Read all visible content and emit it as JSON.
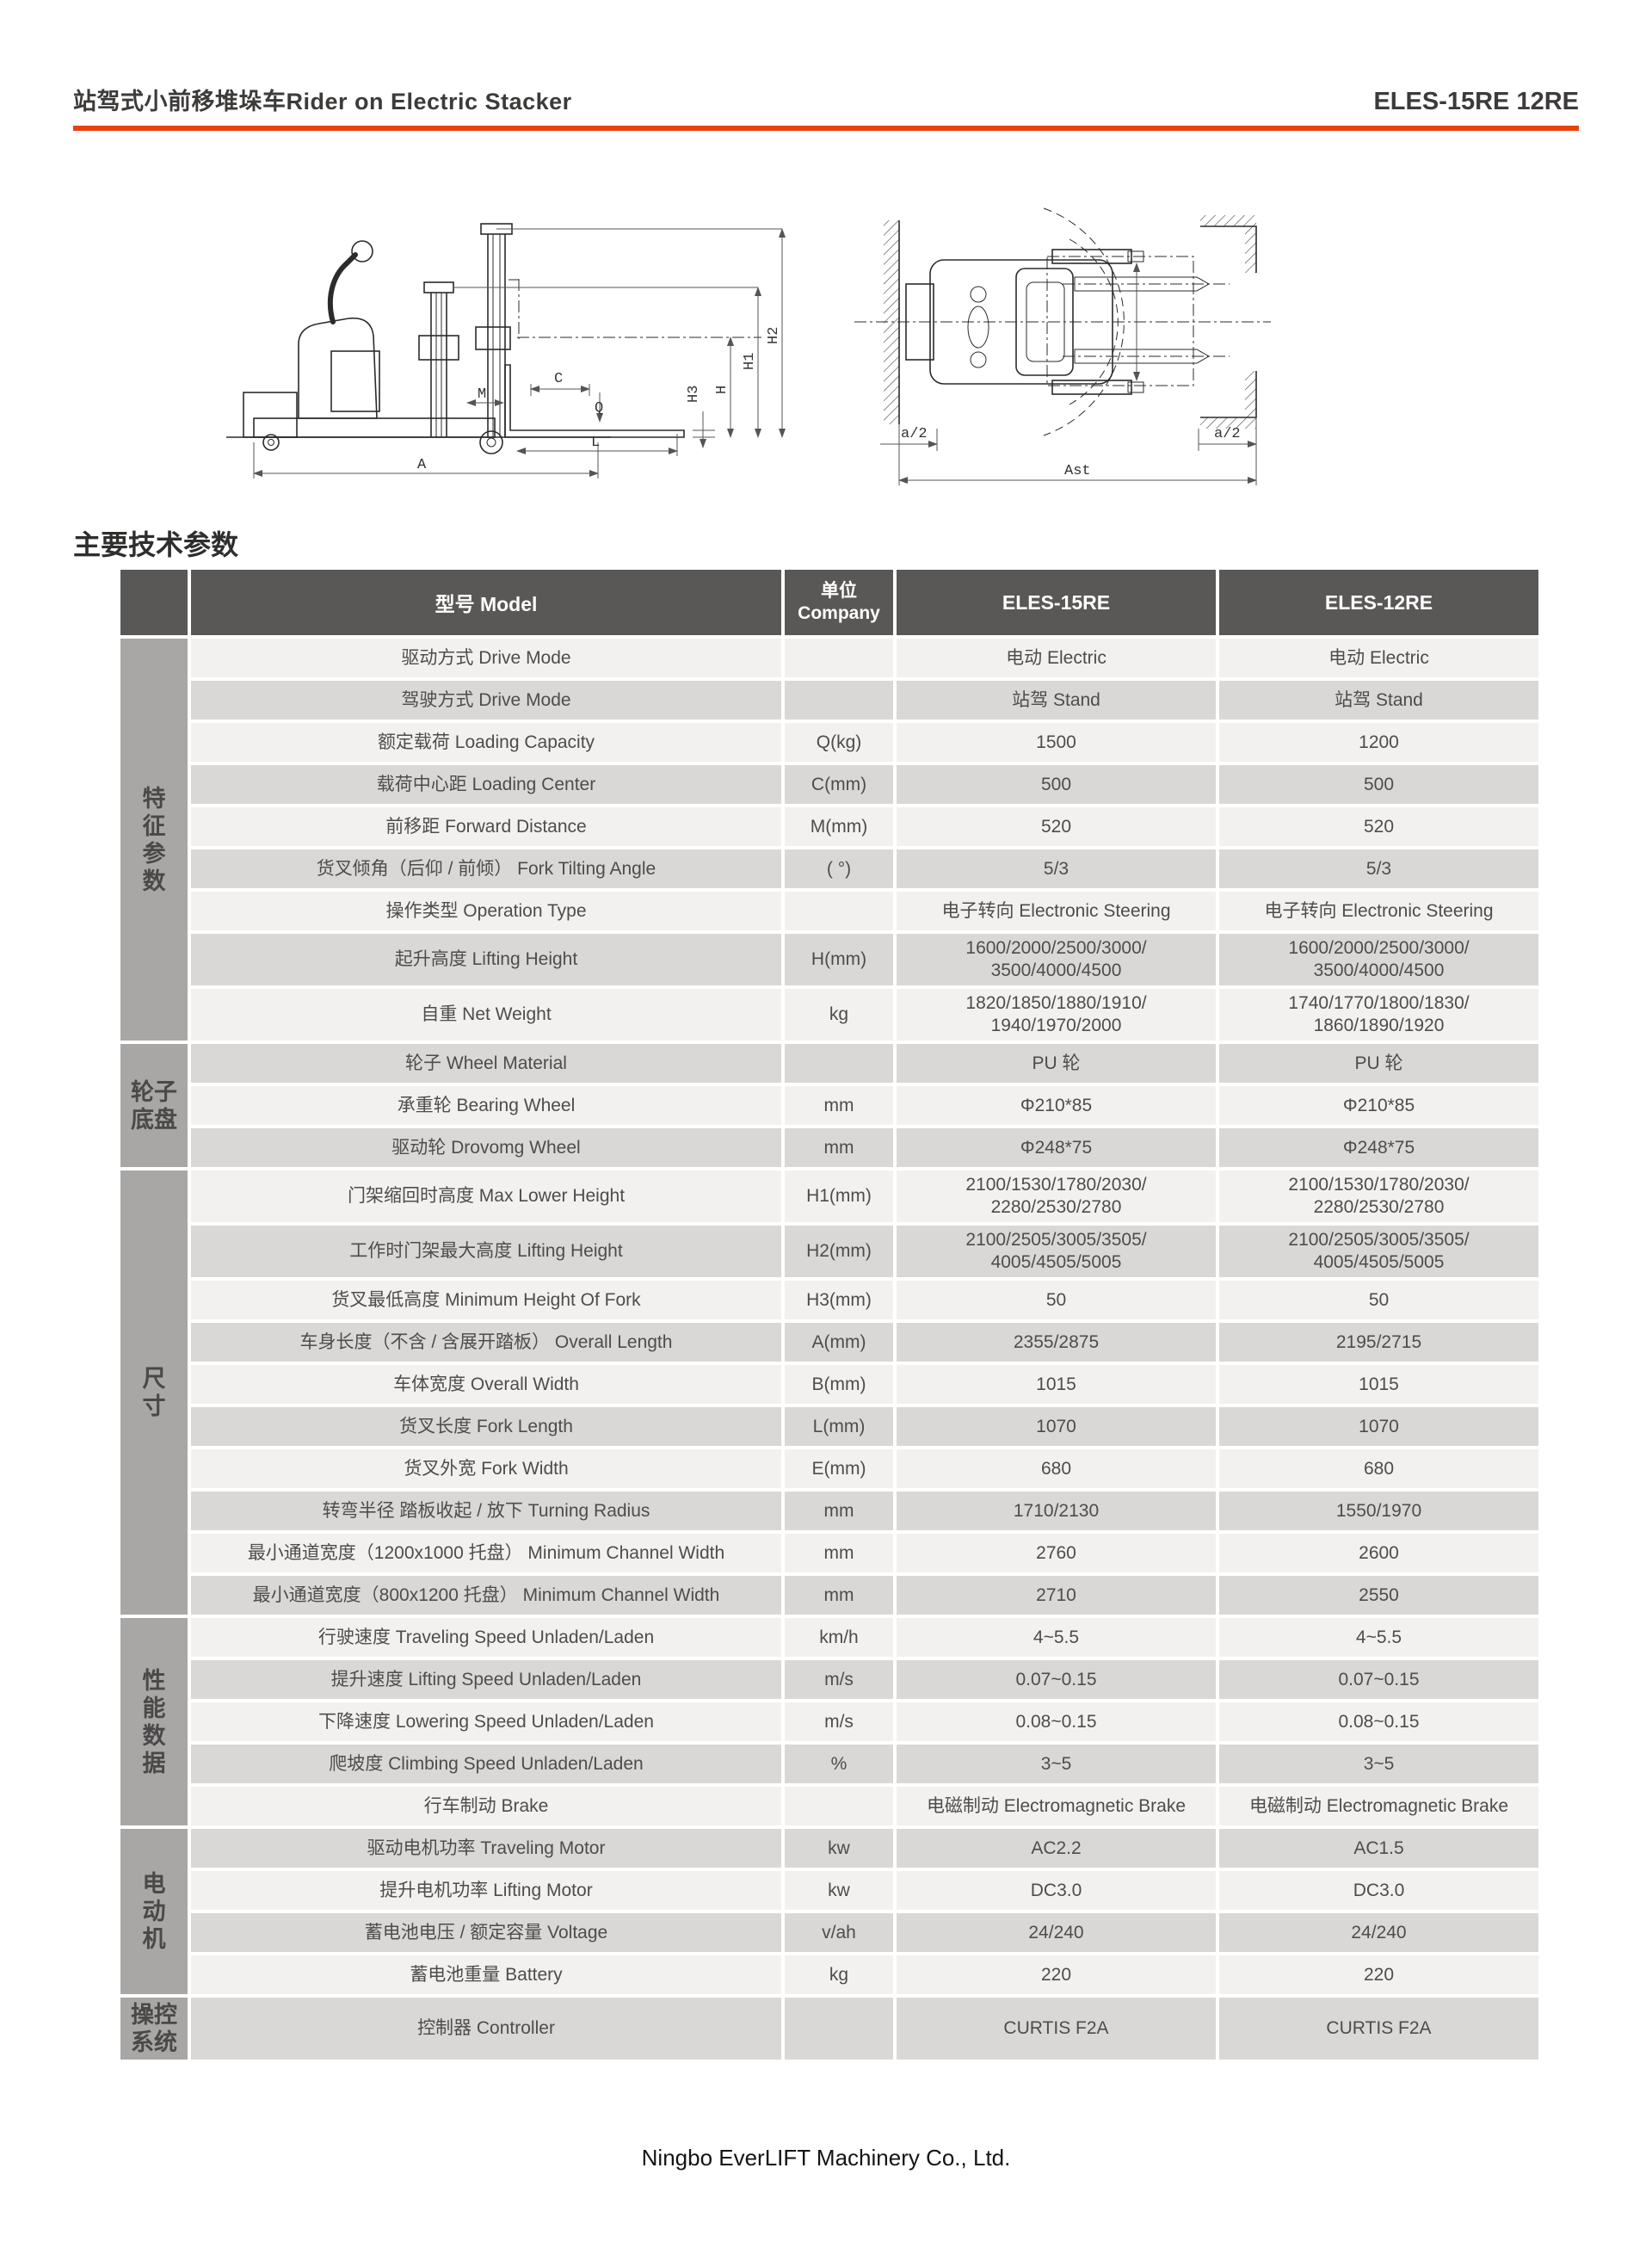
{
  "header": {
    "title": "站驾式小前移堆垛车Rider on Electric Stacker",
    "model_code": "ELES-15RE 12RE",
    "accent_color": "#e8430d"
  },
  "section_title": "主要技术参数",
  "footer": {
    "company": "Ningbo EverLIFT Machinery Co., Ltd."
  },
  "drawings": {
    "side_view": {
      "dimension_labels": [
        "M",
        "C",
        "Q",
        "L",
        "A",
        "H3",
        "H",
        "H1",
        "H2"
      ]
    },
    "top_view": {
      "dimension_labels": [
        "a/2",
        "a/2",
        "Ast"
      ]
    }
  },
  "table": {
    "colors": {
      "header_bg": "#5a5857",
      "group_bg": "#a9a7a5",
      "row_light": "#f2f1ef",
      "row_dark": "#d9d8d6",
      "header_text": "#ffffff",
      "body_text": "#4e4c4c",
      "accent": "#e8430d"
    },
    "header": {
      "model": "型号 Model",
      "unit": "单位\nCompany",
      "col_15re": "ELES-15RE",
      "col_12re": "ELES-12RE"
    },
    "groups": [
      {
        "label": "特\n征\n参\n数",
        "rows": [
          {
            "label": "驱动方式 Drive Mode",
            "unit": "",
            "values": [
              "电动 Electric",
              "电动 Electric"
            ]
          },
          {
            "label": "驾驶方式 Drive Mode",
            "unit": "",
            "values": [
              "站驾 Stand",
              "站驾 Stand"
            ]
          },
          {
            "label": "额定载荷 Loading Capacity",
            "unit": "Q(kg)",
            "values": [
              "1500",
              "1200"
            ]
          },
          {
            "label": "载荷中心距 Loading Center",
            "unit": "C(mm)",
            "values": [
              "500",
              "500"
            ]
          },
          {
            "label": "前移距 Forward Distance",
            "unit": "M(mm)",
            "values": [
              "520",
              "520"
            ]
          },
          {
            "label": "货叉倾角（后仰 / 前倾） Fork Tilting Angle",
            "unit": "( °)",
            "values": [
              "5/3",
              "5/3"
            ]
          },
          {
            "label": "操作类型 Operation Type",
            "unit": "",
            "values": [
              "电子转向 Electronic Steering",
              "电子转向 Electronic Steering"
            ]
          },
          {
            "label": "起升高度 Lifting Height",
            "unit": "H(mm)",
            "values": [
              "1600/2000/2500/3000/\n3500/4000/4500",
              "1600/2000/2500/3000/\n3500/4000/4500"
            ]
          },
          {
            "label": "自重 Net Weight",
            "unit": "kg",
            "values": [
              "1820/1850/1880/1910/\n1940/1970/2000",
              "1740/1770/1800/1830/\n1860/1890/1920"
            ]
          }
        ]
      },
      {
        "label": "轮子\n底盘",
        "rows": [
          {
            "label": "轮子 Wheel Material",
            "unit": "",
            "values": [
              "PU 轮",
              "PU 轮"
            ]
          },
          {
            "label": "承重轮 Bearing Wheel",
            "unit": "mm",
            "values": [
              "Φ210*85",
              "Φ210*85"
            ]
          },
          {
            "label": "驱动轮 Drovomg Wheel",
            "unit": "mm",
            "values": [
              "Φ248*75",
              "Φ248*75"
            ]
          }
        ]
      },
      {
        "label": "尺\n寸",
        "rows": [
          {
            "label": "门架缩回时高度 Max Lower Height",
            "unit": "H1(mm)",
            "values": [
              "2100/1530/1780/2030/\n2280/2530/2780",
              "2100/1530/1780/2030/\n2280/2530/2780"
            ]
          },
          {
            "label": "工作时门架最大高度 Lifting Height",
            "unit": "H2(mm)",
            "values": [
              "2100/2505/3005/3505/\n4005/4505/5005",
              "2100/2505/3005/3505/\n4005/4505/5005"
            ]
          },
          {
            "label": "货叉最低高度 Minimum Height Of Fork",
            "unit": "H3(mm)",
            "values": [
              "50",
              "50"
            ]
          },
          {
            "label": "车身长度（不含 / 含展开踏板） Overall Length",
            "unit": "A(mm)",
            "values": [
              "2355/2875",
              "2195/2715"
            ]
          },
          {
            "label": "车体宽度 Overall Width",
            "unit": "B(mm)",
            "values": [
              "1015",
              "1015"
            ]
          },
          {
            "label": "货叉长度 Fork Length",
            "unit": "L(mm)",
            "values": [
              "1070",
              "1070"
            ]
          },
          {
            "label": "货叉外宽 Fork Width",
            "unit": "E(mm)",
            "values": [
              "680",
              "680"
            ]
          },
          {
            "label": "转弯半径 踏板收起 / 放下 Turning Radius",
            "unit": "mm",
            "values": [
              "1710/2130",
              "1550/1970"
            ]
          },
          {
            "label": "最小通道宽度（1200x1000 托盘） Minimum Channel Width",
            "unit": "mm",
            "values": [
              "2760",
              "2600"
            ]
          },
          {
            "label": "最小通道宽度（800x1200 托盘） Minimum Channel Width",
            "unit": "mm",
            "values": [
              "2710",
              "2550"
            ]
          }
        ]
      },
      {
        "label": "性\n能\n数\n据",
        "rows": [
          {
            "label": "行驶速度 Traveling Speed Unladen/Laden",
            "unit": "km/h",
            "values": [
              "4~5.5",
              "4~5.5"
            ]
          },
          {
            "label": "提升速度 Lifting Speed Unladen/Laden",
            "unit": "m/s",
            "values": [
              "0.07~0.15",
              "0.07~0.15"
            ]
          },
          {
            "label": "下降速度 Lowering Speed Unladen/Laden",
            "unit": "m/s",
            "values": [
              "0.08~0.15",
              "0.08~0.15"
            ]
          },
          {
            "label": "爬坡度 Climbing Speed Unladen/Laden",
            "unit": "%",
            "values": [
              "3~5",
              "3~5"
            ]
          },
          {
            "label": "行车制动 Brake",
            "unit": "",
            "values": [
              "电磁制动 Electromagnetic Brake",
              "电磁制动 Electromagnetic Brake"
            ]
          }
        ]
      },
      {
        "label": "电\n动\n机",
        "rows": [
          {
            "label": "驱动电机功率 Traveling Motor",
            "unit": "kw",
            "values": [
              "AC2.2",
              "AC1.5"
            ]
          },
          {
            "label": "提升电机功率 Lifting Motor",
            "unit": "kw",
            "values": [
              "DC3.0",
              "DC3.0"
            ]
          },
          {
            "label": "蓄电池电压 / 额定容量 Voltage",
            "unit": "v/ah",
            "values": [
              "24/240",
              "24/240"
            ]
          },
          {
            "label": "蓄电池重量 Battery",
            "unit": "kg",
            "values": [
              "220",
              "220"
            ]
          }
        ]
      },
      {
        "label": "操控\n系统",
        "rows": [
          {
            "label": "控制器 Controller",
            "unit": "",
            "values": [
              "CURTIS F2A",
              "CURTIS F2A"
            ]
          }
        ]
      }
    ]
  }
}
